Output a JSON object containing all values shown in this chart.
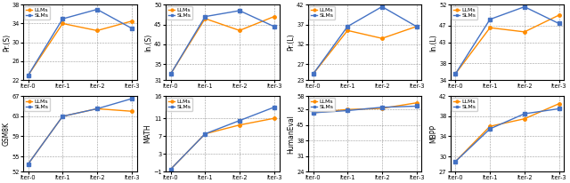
{
  "subplots": [
    {
      "ylabel": "Pr.(S)",
      "ylim": [
        22,
        38
      ],
      "yticks": [
        22,
        26,
        30,
        34,
        38
      ],
      "llms": [
        23.0,
        34.0,
        32.5,
        34.5
      ],
      "slms": [
        23.0,
        35.0,
        37.0,
        33.0
      ]
    },
    {
      "ylabel": "In.(S)",
      "ylim": [
        31,
        50
      ],
      "yticks": [
        31,
        35,
        40,
        45,
        50
      ],
      "llms": [
        32.5,
        46.5,
        43.5,
        47.0
      ],
      "slms": [
        32.5,
        47.0,
        48.5,
        44.5
      ]
    },
    {
      "ylabel": "Pr.(L)",
      "ylim": [
        23,
        42
      ],
      "yticks": [
        23,
        27,
        32,
        37,
        42
      ],
      "llms": [
        24.5,
        35.5,
        33.5,
        36.5
      ],
      "slms": [
        24.5,
        36.5,
        41.5,
        36.5
      ]
    },
    {
      "ylabel": "In.(L)",
      "ylim": [
        34,
        52
      ],
      "yticks": [
        34,
        38,
        43,
        47,
        52
      ],
      "llms": [
        35.5,
        46.5,
        45.5,
        49.5
      ],
      "slms": [
        35.5,
        48.5,
        51.5,
        47.5
      ]
    },
    {
      "ylabel": "GSM8K",
      "ylim": [
        52,
        67
      ],
      "yticks": [
        52,
        55,
        59,
        63,
        67
      ],
      "llms": [
        53.5,
        63.0,
        64.5,
        64.0
      ],
      "slms": [
        53.5,
        63.0,
        64.5,
        66.5
      ]
    },
    {
      "ylabel": "MATH",
      "ylim": [
        -1,
        16
      ],
      "yticks": [
        -1,
        3,
        7,
        11,
        16
      ],
      "llms": [
        -0.5,
        7.5,
        9.5,
        11.0
      ],
      "slms": [
        -0.5,
        7.5,
        10.5,
        13.5
      ]
    },
    {
      "ylabel": "HumanEval",
      "ylim": [
        24,
        58
      ],
      "yticks": [
        24,
        31,
        38,
        45,
        52,
        58
      ],
      "llms": [
        50.5,
        52.0,
        52.5,
        55.0
      ],
      "slms": [
        50.5,
        51.5,
        53.0,
        53.5
      ]
    },
    {
      "ylabel": "MBPP",
      "ylim": [
        27,
        42
      ],
      "yticks": [
        27,
        30,
        34,
        38,
        42
      ],
      "llms": [
        29.0,
        36.0,
        37.5,
        40.5
      ],
      "slms": [
        29.0,
        35.5,
        38.5,
        39.5
      ]
    }
  ],
  "xticklabels": [
    "Iter-0",
    "Iter-1",
    "Iter-2",
    "Iter-3"
  ],
  "llm_color": "#FF8C00",
  "slm_color": "#4472C4",
  "llm_label": "LLMs",
  "slm_label": "SLMs"
}
